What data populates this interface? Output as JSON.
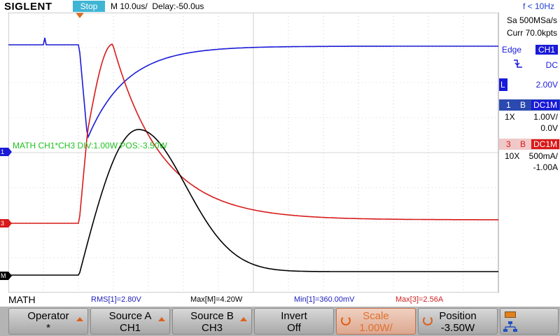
{
  "header": {
    "brand": "SIGLENT",
    "run_state": "Stop",
    "timebase": "M 10.0us/",
    "delay": "Delay:-50.0us",
    "frequency": "f < 10Hz"
  },
  "acquisition": {
    "sample_rate": "Sa 500MSa/s",
    "memory": "Curr 70.0kpts"
  },
  "trigger": {
    "type": "Edge",
    "source": "CH1",
    "slope_icon": "falling-edge-icon",
    "coupling": "DC",
    "level_marker": "L",
    "level": "2.00V"
  },
  "channels": [
    {
      "number": "1",
      "bw_flag": "B",
      "coupling": "DC1M",
      "probe": "1X",
      "scale": "1.00V/",
      "offset": "0.0V",
      "color": "#2020e0"
    },
    {
      "number": "3",
      "bw_flag": "B",
      "coupling": "DC1M",
      "probe": "10X",
      "scale": "500mA/",
      "offset": "-1.00A",
      "color": "#e02020"
    }
  ],
  "ground_markers": {
    "ch1": "1",
    "ch3": "3",
    "math": "M"
  },
  "math": {
    "label": "MATH  CH1*CH3  DIV:1.00W  POS:-3.50W",
    "menu_title": "MATH"
  },
  "measurements": [
    {
      "text": "RMS[1]=2.80V",
      "color": "#2020c0"
    },
    {
      "text": "Max[M]=4.20W",
      "color": "#000000"
    },
    {
      "text": "Min[1]=360.00mV",
      "color": "#2020c0"
    },
    {
      "text": "Max[3]=2.56A",
      "color": "#d02020"
    }
  ],
  "softkeys": [
    {
      "label": "Operator",
      "value": "*"
    },
    {
      "label": "Source A",
      "value": "CH1"
    },
    {
      "label": "Source B",
      "value": "CH3"
    },
    {
      "label": "Invert",
      "value": "Off"
    },
    {
      "label": "Scale",
      "value": "1.00W/"
    },
    {
      "label": "Position",
      "value": "-3.50W"
    }
  ],
  "colors": {
    "ch1": "#1a1ad8",
    "ch3": "#d81a1a",
    "math": "#000000",
    "math_label": "#20c020",
    "run_state": "#3fb5d4",
    "trigger_accent": "#e06a1a",
    "grid": "#b0b0b0"
  }
}
